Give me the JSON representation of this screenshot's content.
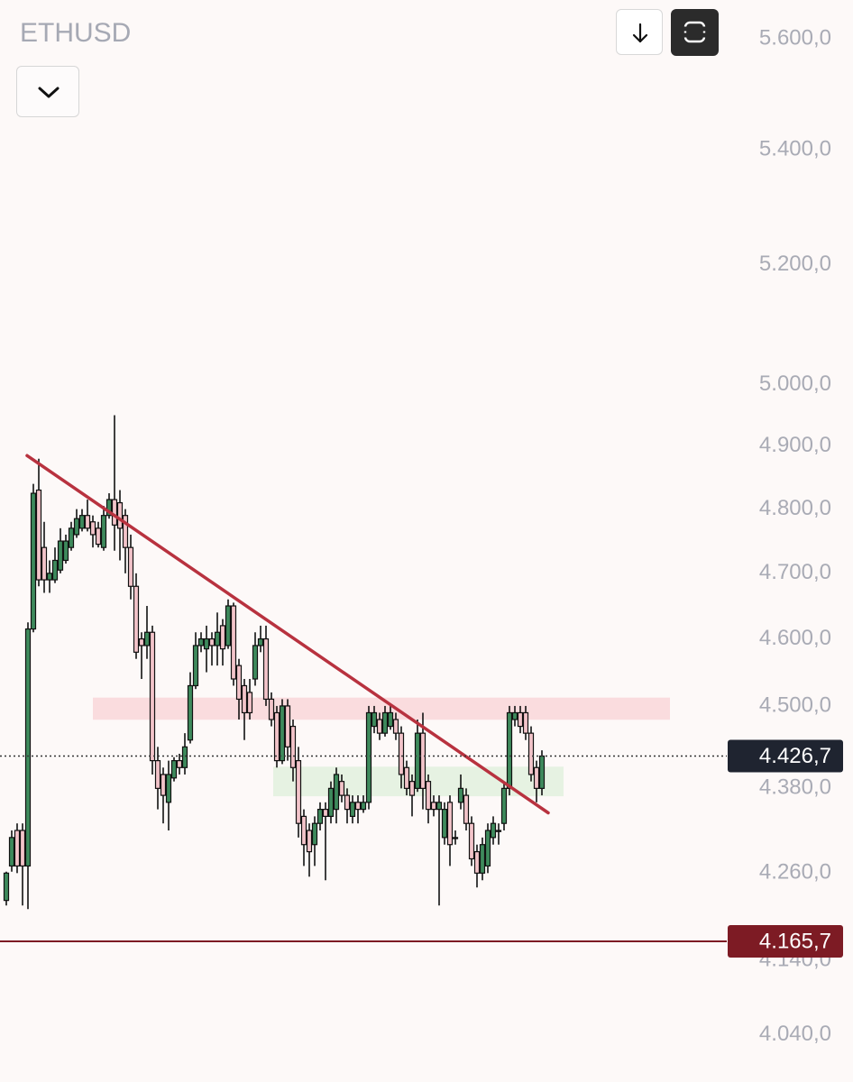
{
  "chart_data": {
    "type": "candlestick",
    "title": "ETHUSD",
    "log_scale": true,
    "ylim": [
      3978,
      5672
    ],
    "yticks": [
      {
        "value": 5600,
        "label": "5.600,0"
      },
      {
        "value": 5400,
        "label": "5.400,0"
      },
      {
        "value": 5200,
        "label": "5.200,0"
      },
      {
        "value": 5000,
        "label": "5.000,0"
      },
      {
        "value": 4900,
        "label": "4.900,0"
      },
      {
        "value": 4800,
        "label": "4.800,0"
      },
      {
        "value": 4700,
        "label": "4.700,0"
      },
      {
        "value": 4600,
        "label": "4.600,0"
      },
      {
        "value": 4500,
        "label": "4.500,0"
      },
      {
        "value": 4380,
        "label": "4.380,0"
      },
      {
        "value": 4260,
        "label": "4.260,0"
      },
      {
        "value": 4140,
        "label": "4.140,0"
      },
      {
        "value": 4040,
        "label": "4.040,0"
      }
    ],
    "up_color": "#3e8a5c",
    "down_color": "#f3c4ca",
    "open": [
      4222,
      4270,
      4320,
      4320,
      4270,
      4615,
      4830,
      4740,
      4690,
      4690,
      4705,
      4720,
      4740,
      4760,
      4770,
      4790,
      4780,
      4770,
      4740,
      4790,
      4815,
      4810,
      4790,
      4740,
      4680,
      4600,
      4590,
      4610,
      4420,
      4400,
      4360,
      4395,
      4420,
      4410,
      4450,
      4530,
      4590,
      4585,
      4600,
      4590,
      4620,
      4590,
      4650,
      4560,
      4530,
      4520,
      4540,
      4590,
      4600,
      4510,
      4490,
      4420,
      4500,
      4470,
      4420,
      4340,
      4320,
      4300,
      4330,
      4350,
      4340,
      4350,
      4390,
      4370,
      4340,
      4360,
      4350,
      4360,
      4470,
      4480,
      4460,
      4470,
      4480,
      4460,
      4410,
      4390,
      4380,
      4460,
      4390,
      4360,
      4350,
      4310,
      4360,
      4310,
      4360,
      4370,
      4330,
      4290,
      4260,
      4270,
      4310,
      4320,
      4330,
      4380,
      4480,
      4490,
      4490,
      4460,
      4410,
      4380
    ],
    "high": [
      4262,
      4320,
      4330,
      4330,
      4625,
      4840,
      4880,
      4780,
      4720,
      4740,
      4770,
      4760,
      4780,
      4800,
      4800,
      4815,
      4790,
      4780,
      4805,
      4825,
      4950,
      4830,
      4800,
      4760,
      4700,
      4610,
      4650,
      4620,
      4440,
      4410,
      4420,
      4425,
      4430,
      4460,
      4550,
      4610,
      4610,
      4620,
      4610,
      4640,
      4630,
      4660,
      4655,
      4570,
      4540,
      4540,
      4610,
      4620,
      4620,
      4520,
      4500,
      4510,
      4510,
      4480,
      4440,
      4350,
      4330,
      4340,
      4360,
      4360,
      4390,
      4410,
      4400,
      4380,
      4370,
      4370,
      4370,
      4500,
      4500,
      4490,
      4500,
      4500,
      4490,
      4470,
      4420,
      4400,
      4480,
      4490,
      4400,
      4370,
      4370,
      4360,
      4370,
      4320,
      4400,
      4380,
      4340,
      4300,
      4310,
      4330,
      4340,
      4330,
      4390,
      4500,
      4500,
      4500,
      4500,
      4470,
      4420,
      4435
    ],
    "low": [
      4215,
      4262,
      4260,
      4215,
      4210,
      4610,
      4680,
      4670,
      4670,
      4685,
      4700,
      4715,
      4735,
      4755,
      4765,
      4765,
      4740,
      4740,
      4735,
      4785,
      4735,
      4720,
      4700,
      4660,
      4570,
      4540,
      4570,
      4400,
      4350,
      4330,
      4320,
      4390,
      4400,
      4400,
      4445,
      4525,
      4580,
      4550,
      4560,
      4560,
      4560,
      4585,
      4530,
      4480,
      4450,
      4480,
      4530,
      4580,
      4500,
      4470,
      4410,
      4415,
      4420,
      4390,
      4310,
      4270,
      4255,
      4270,
      4320,
      4250,
      4330,
      4330,
      4360,
      4330,
      4330,
      4330,
      4345,
      4350,
      4460,
      4450,
      4455,
      4465,
      4450,
      4380,
      4370,
      4340,
      4375,
      4350,
      4330,
      4340,
      4215,
      4300,
      4270,
      4300,
      4350,
      4320,
      4270,
      4240,
      4250,
      4260,
      4300,
      4300,
      4320,
      4370,
      4470,
      4460,
      4450,
      4390,
      4360,
      4370
    ],
    "close": [
      4260,
      4310,
      4270,
      4270,
      4615,
      4825,
      4690,
      4690,
      4700,
      4720,
      4750,
      4750,
      4770,
      4785,
      4790,
      4770,
      4760,
      4745,
      4790,
      4815,
      4775,
      4770,
      4740,
      4680,
      4580,
      4590,
      4610,
      4420,
      4380,
      4370,
      4400,
      4420,
      4410,
      4440,
      4530,
      4590,
      4600,
      4600,
      4590,
      4610,
      4585,
      4650,
      4540,
      4510,
      4490,
      4490,
      4590,
      4600,
      4510,
      4480,
      4420,
      4500,
      4440,
      4410,
      4330,
      4300,
      4290,
      4330,
      4350,
      4340,
      4380,
      4400,
      4370,
      4350,
      4360,
      4350,
      4360,
      4490,
      4490,
      4460,
      4490,
      4490,
      4460,
      4400,
      4380,
      4370,
      4460,
      4380,
      4350,
      4350,
      4360,
      4350,
      4300,
      4310,
      4380,
      4330,
      4280,
      4260,
      4300,
      4320,
      4330,
      4320,
      4380,
      4490,
      4490,
      4470,
      4460,
      4400,
      4380,
      4426.7
    ],
    "trendline": {
      "start": 4885,
      "end": 4345,
      "color": "#b8323f"
    },
    "zones": [
      {
        "low": 4481,
        "high": 4511,
        "color": "#fadcde"
      },
      {
        "low": 4370,
        "high": 4410,
        "color": "#e6f2e2"
      }
    ],
    "last_price": {
      "value": 4426.7,
      "label": "4.426,7",
      "color": "#1f2430"
    },
    "alert_line": {
      "value": 4165.7,
      "label": "4.165,7",
      "color": "#7d1b24"
    }
  }
}
